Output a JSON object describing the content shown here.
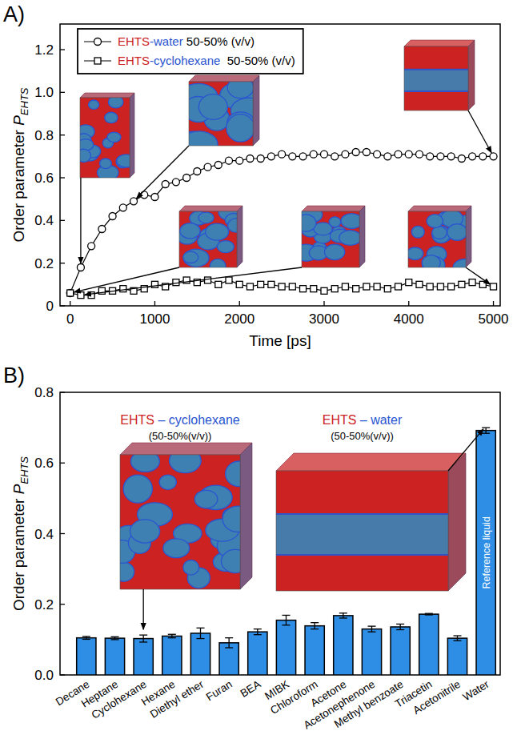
{
  "chart_data": [
    {
      "type": "line",
      "panel": "A)",
      "xlabel": "Time [ps]",
      "ylabel": "Order parameter",
      "ylabel_symbol": "P",
      "ylabel_subscript": "EHTS",
      "x": [
        0,
        125,
        250,
        375,
        500,
        625,
        750,
        875,
        1000,
        1125,
        1250,
        1375,
        1500,
        1625,
        1750,
        1875,
        2000,
        2125,
        2250,
        2375,
        2500,
        2625,
        2750,
        2875,
        3000,
        3125,
        3250,
        3375,
        3500,
        3625,
        3750,
        3875,
        4000,
        4125,
        4250,
        4375,
        4500,
        4625,
        4750,
        4875,
        5000
      ],
      "xlim": [
        -120,
        5080
      ],
      "xticks": [
        0,
        1000,
        2000,
        3000,
        4000,
        5000
      ],
      "ylim": [
        0,
        1.32
      ],
      "yticks": [
        0,
        0.2,
        0.4,
        0.6,
        0.8,
        {
          "value": 1,
          "label": "1.0"
        },
        1.2
      ],
      "grid": false,
      "legend": "upper left",
      "series": [
        {
          "name": "EHTS-water 50-50% (v/v)",
          "color": "#000000",
          "marker": "circle",
          "line_style": "solid",
          "values": [
            0.06,
            0.18,
            0.28,
            0.36,
            0.42,
            0.46,
            0.49,
            0.52,
            0.51,
            0.57,
            0.58,
            0.6,
            0.63,
            0.65,
            0.66,
            0.68,
            0.68,
            0.69,
            0.69,
            0.7,
            0.71,
            0.7,
            0.7,
            0.71,
            0.71,
            0.7,
            0.71,
            0.72,
            0.72,
            0.71,
            0.7,
            0.71,
            0.71,
            0.71,
            0.7,
            0.7,
            0.7,
            0.69,
            0.7,
            0.7,
            0.7
          ]
        },
        {
          "name": "EHTS-cyclohexane  50-50% (v/v)",
          "color": "#000000",
          "marker": "square",
          "line_style": "solid",
          "values": [
            0.06,
            0.05,
            0.05,
            0.07,
            0.07,
            0.08,
            0.07,
            0.08,
            0.1,
            0.09,
            0.11,
            0.12,
            0.11,
            0.12,
            0.1,
            0.12,
            0.1,
            0.09,
            0.1,
            0.1,
            0.09,
            0.09,
            0.08,
            0.08,
            0.07,
            0.08,
            0.09,
            0.08,
            0.09,
            0.09,
            0.08,
            0.09,
            0.11,
            0.1,
            0.09,
            0.09,
            0.09,
            0.1,
            0.11,
            0.1,
            0.09
          ]
        }
      ]
    },
    {
      "type": "bar",
      "panel": "B)",
      "ylabel": "Order parameter",
      "ylabel_symbol": "P",
      "ylabel_subscript": "EHTS",
      "categories": [
        "Decane",
        "Heptane",
        "Cyclohexane",
        "Hexane",
        "Diethyl ether",
        "Furan",
        "BEA",
        "MIBK",
        "Chloroform",
        "Acetone",
        "Acetonephenone",
        "Methyl benzoate",
        "Triacetin",
        "Acetonitrile",
        "Water"
      ],
      "values": [
        0.105,
        0.104,
        0.103,
        0.11,
        0.118,
        0.091,
        0.122,
        0.155,
        0.139,
        0.168,
        0.13,
        0.136,
        0.172,
        0.104,
        0.692
      ],
      "errors": [
        0.004,
        0.004,
        0.01,
        0.005,
        0.015,
        0.014,
        0.008,
        0.014,
        0.009,
        0.007,
        0.008,
        0.008,
        0.002,
        0.007,
        0.008
      ],
      "color": "#2e8ee6",
      "ylim": [
        0,
        0.8
      ],
      "yticks": [
        {
          "value": 0,
          "label": "0.0"
        },
        0.2,
        0.4,
        0.6,
        0.8
      ],
      "grid": false,
      "annotations": [
        {
          "text": "Reference liquid",
          "category": "Water"
        }
      ],
      "insets": [
        {
          "label": "EHTS – cyclohexane",
          "sublabel": "(50-50%(v/v))",
          "category": "Cyclohexane"
        },
        {
          "label": "EHTS – water",
          "sublabel": "(50-50%(v/v))",
          "category": "Water"
        }
      ]
    }
  ]
}
